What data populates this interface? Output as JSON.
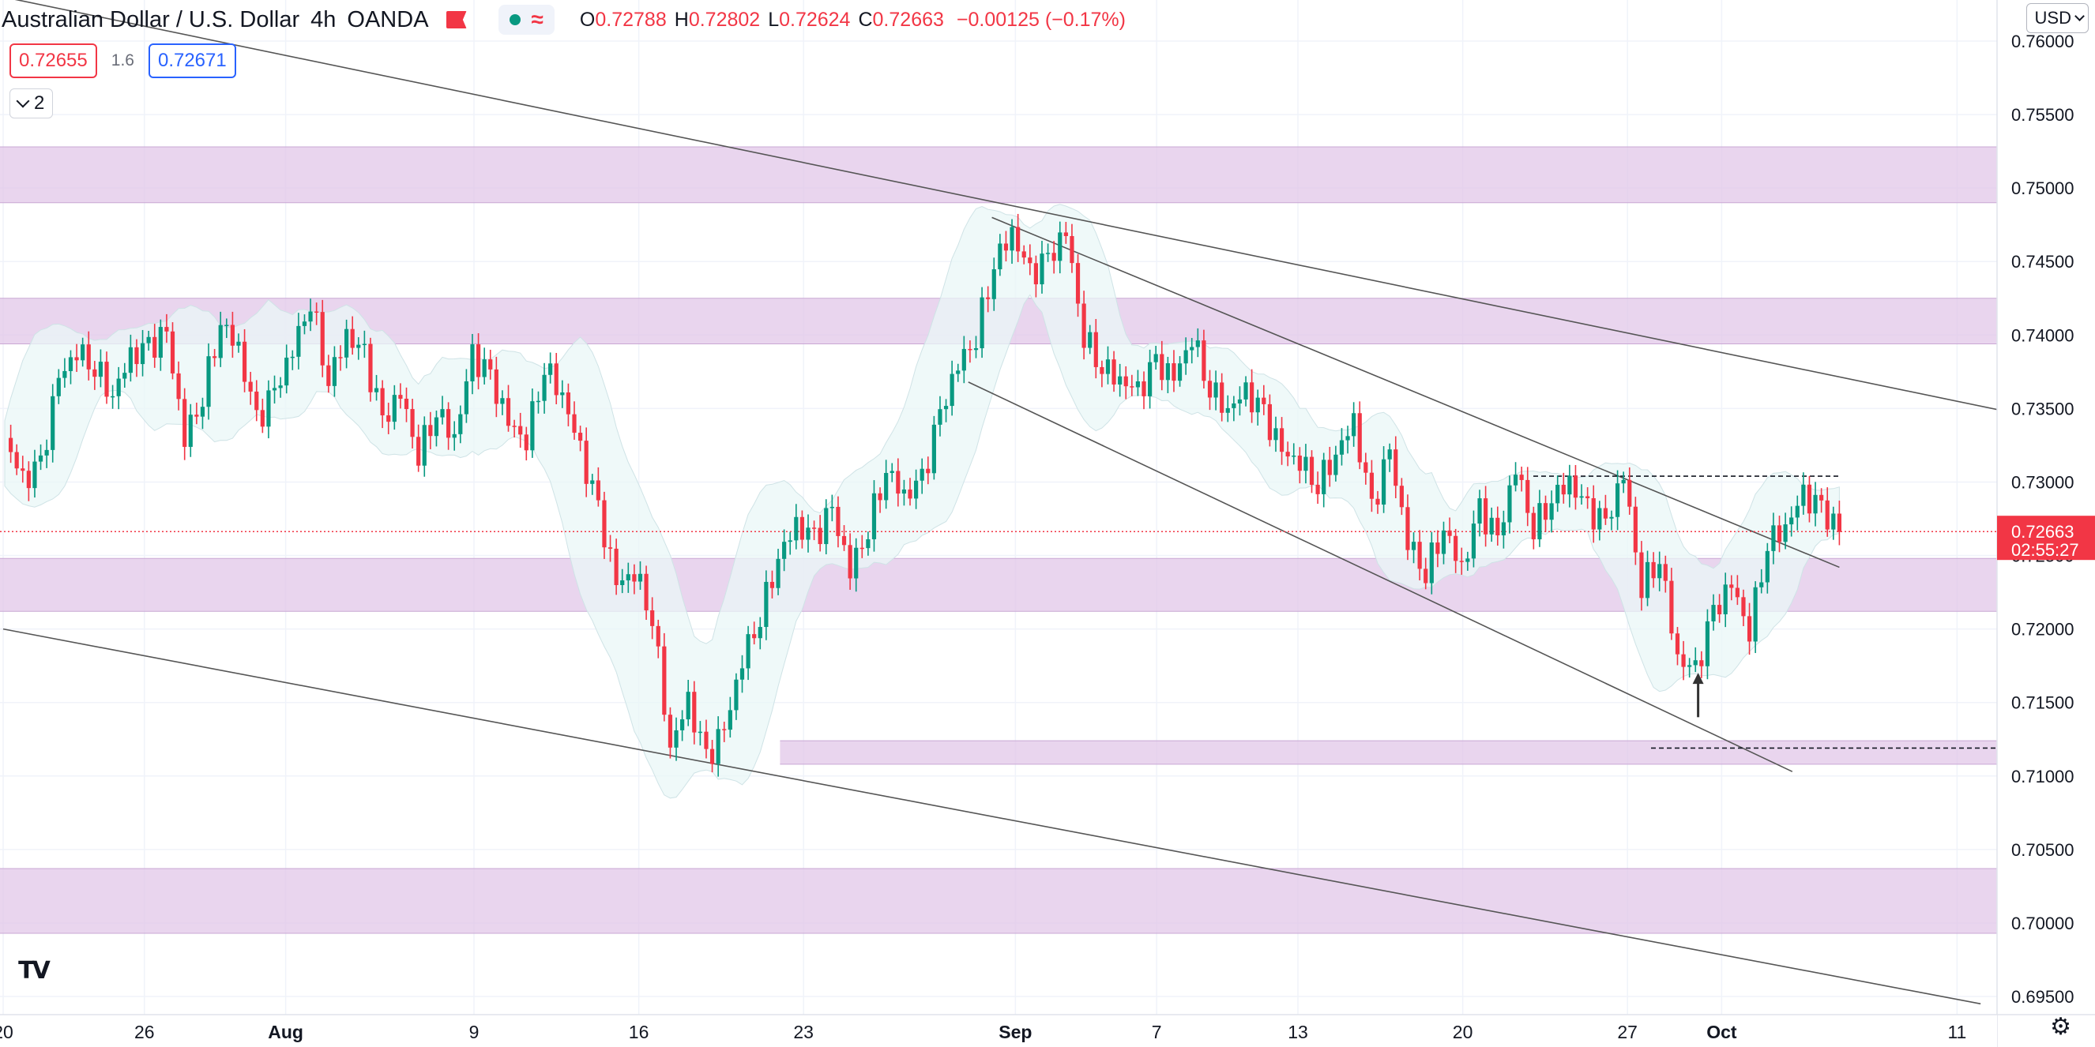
{
  "header": {
    "symbol_name": "Australian Dollar / U.S. Dollar",
    "interval": "4h",
    "exchange": "OANDA",
    "ohlc": {
      "open_label": "O",
      "open": "0.72788",
      "high_label": "H",
      "high": "0.72802",
      "low_label": "L",
      "low": "0.72624",
      "close_label": "C",
      "close": "0.72663",
      "change": "−0.00125 (−0.17%)"
    }
  },
  "trade": {
    "bid": "0.72655",
    "spread": "1.6",
    "ask": "0.72671"
  },
  "indicators_collapse_count": "2",
  "currency_button": "USD",
  "price_label": {
    "price": "0.72663",
    "countdown": "02:55:27"
  },
  "colors": {
    "up": "#089981",
    "down": "#f23645",
    "zone": "#e1c5e8",
    "band": "#eaf7f7",
    "trendline": "#555555",
    "price_line": "#f23645",
    "accent_blue": "#2962ff"
  },
  "icons": {
    "tradingview_logo": "tradingview-logo-icon",
    "settings": "gear-icon",
    "flag": "flag-icon"
  },
  "chart_data": {
    "type": "candlestick",
    "title": "Australian Dollar / U.S. Dollar, 4h, OANDA",
    "y_axis": {
      "side": "right",
      "ticks": [
        "0.76000",
        "0.75500",
        "0.75000",
        "0.74500",
        "0.74000",
        "0.73500",
        "0.73000",
        "0.72500",
        "0.72000",
        "0.71500",
        "0.71000",
        "0.70500",
        "0.70000",
        "0.69500"
      ],
      "range": [
        0.6925,
        0.7627
      ]
    },
    "x_axis": {
      "ticks": [
        "20",
        "26",
        "Aug",
        "9",
        "16",
        "23",
        "Sep",
        "7",
        "13",
        "20",
        "27",
        "Oct",
        "11"
      ],
      "bold_ticks": [
        "Aug",
        "Sep",
        "Oct"
      ]
    },
    "grid": true,
    "last_price": 0.72663,
    "zones": [
      {
        "low": 0.749,
        "high": 0.7528,
        "from": "start",
        "to": "end"
      },
      {
        "low": 0.7394,
        "high": 0.7425,
        "from": "start",
        "to": "end"
      },
      {
        "low": 0.7212,
        "high": 0.7248,
        "from": "start",
        "to": "end"
      },
      {
        "low": 0.7108,
        "high": 0.7124,
        "from": "Aug 22",
        "to": "end"
      },
      {
        "low": 0.6993,
        "high": 0.7037,
        "from": "start",
        "to": "end"
      }
    ],
    "horizontal_lines": [
      {
        "price": 0.7304,
        "style": "dashed",
        "from": "Sep 23",
        "to": "Oct 06"
      },
      {
        "price": 0.7119,
        "style": "dashed",
        "from": "Sep 28",
        "to": "Oct 14"
      }
    ],
    "trendlines": [
      {
        "p1": [
          "Jul 20",
          0.763
        ],
        "p2": [
          "Oct 14",
          0.7345
        ]
      },
      {
        "p1": [
          "Jul 20",
          0.72
        ],
        "p2": [
          "Oct 12",
          0.6945
        ]
      },
      {
        "p1": [
          "Aug 31",
          0.748
        ],
        "p2": [
          "Oct 06",
          0.7242
        ]
      },
      {
        "p1": [
          "Aug 30",
          0.7368
        ],
        "p2": [
          "Oct 04",
          0.7103
        ]
      }
    ],
    "arrow": {
      "date": "Sep 30",
      "from_price": 0.714,
      "to_price": 0.7168,
      "direction": "up"
    },
    "price_path": [
      [
        0.733,
        0.73,
        0.731,
        0.737,
        0.739,
        0.738,
        0.736,
        0.7385,
        0.739,
        0.74,
        0.733,
        0.736,
        0.741,
        0.739,
        0.734,
        0.736,
        0.739,
        0.7425,
        0.737,
        0.74,
        0.7385,
        0.734,
        0.736,
        0.732,
        0.735,
        0.733,
        0.7385,
        0.737,
        0.734,
        0.733,
        0.738,
        0.736,
        0.732,
        0.728,
        0.723,
        0.724,
        0.721,
        0.712,
        0.715,
        0.711,
        0.713,
        0.718,
        0.721,
        0.725,
        0.727,
        0.726,
        0.728,
        0.724,
        0.727,
        0.731,
        0.729,
        0.73,
        0.7345,
        0.738,
        0.74,
        0.745,
        0.747,
        0.744,
        0.745,
        0.747,
        0.74,
        0.738,
        0.737,
        0.736,
        0.738,
        0.737,
        0.74,
        0.7365,
        0.735,
        0.736,
        0.7345,
        0.732,
        0.7315,
        0.73,
        0.732,
        0.734,
        0.728,
        0.732,
        0.726,
        0.724,
        0.727,
        0.724,
        0.728,
        0.726,
        0.731,
        0.727,
        0.729,
        0.73,
        0.728,
        0.727,
        0.7305,
        0.723,
        0.725,
        0.718,
        0.717,
        0.721,
        0.723,
        0.72,
        0.726,
        0.727,
        0.729,
        0.728,
        0.7266
      ]
    ],
    "notes": "price_path lists approximate 4h closing levels read off the chart, left to right, from Jul 20 to Oct 6."
  }
}
